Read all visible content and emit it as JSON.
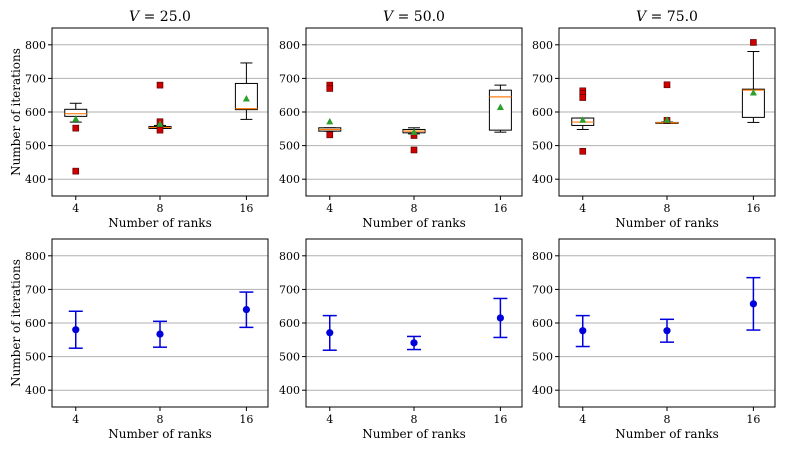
{
  "chart_data": [
    {
      "type": "box",
      "title_var": "V",
      "title_val": " = 25.0",
      "xlabel": "Number of ranks",
      "ylabel": "Number of iterations",
      "categories": [
        "4",
        "8",
        "16"
      ],
      "ylim": [
        350,
        850
      ],
      "yticks": [
        400,
        500,
        600,
        700,
        800
      ],
      "grid": "y",
      "boxes": [
        {
          "whislo": 570,
          "q1": 587,
          "med": 595,
          "q3": 608,
          "whishi": 626,
          "mean": 580,
          "fliers": [
            552,
            424
          ]
        },
        {
          "whislo": 551,
          "q1": 551,
          "med": 554,
          "q3": 557,
          "whishi": 560,
          "mean": 565,
          "fliers": [
            680,
            571,
            546
          ]
        },
        {
          "whislo": 578,
          "q1": 607,
          "med": 610,
          "q3": 685,
          "whishi": 746,
          "mean": 640,
          "fliers": []
        }
      ]
    },
    {
      "type": "box",
      "title_var": "V",
      "title_val": " = 50.0",
      "xlabel": "Number of ranks",
      "ylabel": "",
      "categories": [
        "4",
        "8",
        "16"
      ],
      "ylim": [
        350,
        850
      ],
      "yticks": [
        400,
        500,
        600,
        700,
        800
      ],
      "grid": "y",
      "boxes": [
        {
          "whislo": 543,
          "q1": 543,
          "med": 548,
          "q3": 553,
          "whishi": 553,
          "mean": 572,
          "fliers": [
            680,
            670,
            532
          ]
        },
        {
          "whislo": 535,
          "q1": 538,
          "med": 543,
          "q3": 548,
          "whishi": 553,
          "mean": 541,
          "fliers": [
            530,
            487
          ]
        },
        {
          "whislo": 540,
          "q1": 546,
          "med": 645,
          "q3": 665,
          "whishi": 680,
          "mean": 615,
          "fliers": []
        }
      ]
    },
    {
      "type": "box",
      "title_var": "V",
      "title_val": " = 75.0",
      "xlabel": "Number of ranks",
      "ylabel": "",
      "categories": [
        "4",
        "8",
        "16"
      ],
      "ylim": [
        350,
        850
      ],
      "yticks": [
        400,
        500,
        600,
        700,
        800
      ],
      "grid": "y",
      "boxes": [
        {
          "whislo": 548,
          "q1": 560,
          "med": 570,
          "q3": 582,
          "whishi": 582,
          "mean": 577,
          "fliers": [
            663,
            655,
            643,
            483
          ]
        },
        {
          "whislo": 567,
          "q1": 567,
          "med": 568,
          "q3": 569,
          "whishi": 570,
          "mean": 577,
          "fliers": [
            681,
            575
          ]
        },
        {
          "whislo": 569,
          "q1": 584,
          "med": 665,
          "q3": 668,
          "whishi": 780,
          "mean": 658,
          "fliers": [
            807
          ]
        }
      ]
    },
    {
      "type": "errorbar",
      "xlabel": "Number of ranks",
      "ylabel": "Number of iterations",
      "categories": [
        "4",
        "8",
        "16"
      ],
      "ylim": [
        350,
        850
      ],
      "yticks": [
        400,
        500,
        600,
        700,
        800
      ],
      "grid": "y",
      "points": [
        {
          "mean": 580,
          "lo": 525,
          "hi": 635
        },
        {
          "mean": 567,
          "lo": 528,
          "hi": 605
        },
        {
          "mean": 640,
          "lo": 587,
          "hi": 692
        }
      ]
    },
    {
      "type": "errorbar",
      "xlabel": "Number of ranks",
      "ylabel": "",
      "categories": [
        "4",
        "8",
        "16"
      ],
      "ylim": [
        350,
        850
      ],
      "yticks": [
        400,
        500,
        600,
        700,
        800
      ],
      "grid": "y",
      "points": [
        {
          "mean": 571,
          "lo": 519,
          "hi": 622
        },
        {
          "mean": 541,
          "lo": 521,
          "hi": 560
        },
        {
          "mean": 615,
          "lo": 557,
          "hi": 673
        }
      ]
    },
    {
      "type": "errorbar",
      "xlabel": "Number of ranks",
      "ylabel": "",
      "categories": [
        "4",
        "8",
        "16"
      ],
      "ylim": [
        350,
        850
      ],
      "yticks": [
        400,
        500,
        600,
        700,
        800
      ],
      "grid": "y",
      "points": [
        {
          "mean": 577,
          "lo": 530,
          "hi": 622
        },
        {
          "mean": 577,
          "lo": 543,
          "hi": 611
        },
        {
          "mean": 657,
          "lo": 579,
          "hi": 735
        }
      ]
    }
  ],
  "colors": {
    "box_edge": "#000000",
    "median": "#ff7f0e",
    "mean_marker": "#2ca02c",
    "flier": "#cc0000",
    "errorbar": "#0000dd",
    "grid": "#b0b0b0"
  }
}
